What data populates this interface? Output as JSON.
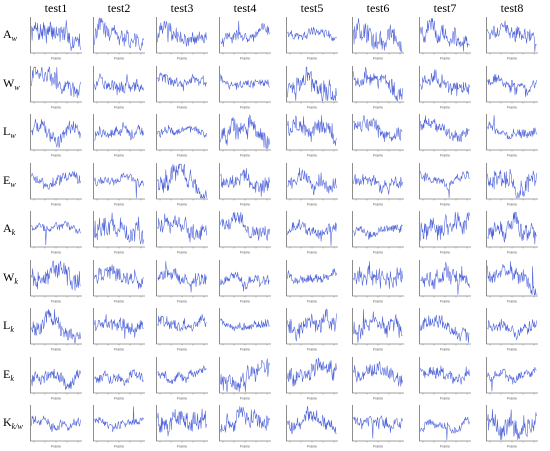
{
  "columns": [
    "test1",
    "test2",
    "test3",
    "test4",
    "test5",
    "test6",
    "test7",
    "test8"
  ],
  "rows": [
    {
      "letter": "A",
      "sub": "w"
    },
    {
      "letter": "W",
      "sub": "w"
    },
    {
      "letter": "L",
      "sub": "w"
    },
    {
      "letter": "E",
      "sub": "w"
    },
    {
      "letter": "A",
      "sub": "k"
    },
    {
      "letter": "W",
      "sub": "k"
    },
    {
      "letter": "L",
      "sub": "k"
    },
    {
      "letter": "E",
      "sub": "k"
    },
    {
      "letter": "K",
      "sub": "k/w"
    }
  ],
  "panel_xlabel": "Frame",
  "chart_data": {
    "type": "line",
    "layout": "grid of 9 rows x 8 columns of small line plots",
    "line_color": "#4a5fd9",
    "grid": false,
    "xlabel": "Frame",
    "ylabel": "",
    "note": "each panel shows one noisy time series over frames; shape per panel estimated"
  }
}
